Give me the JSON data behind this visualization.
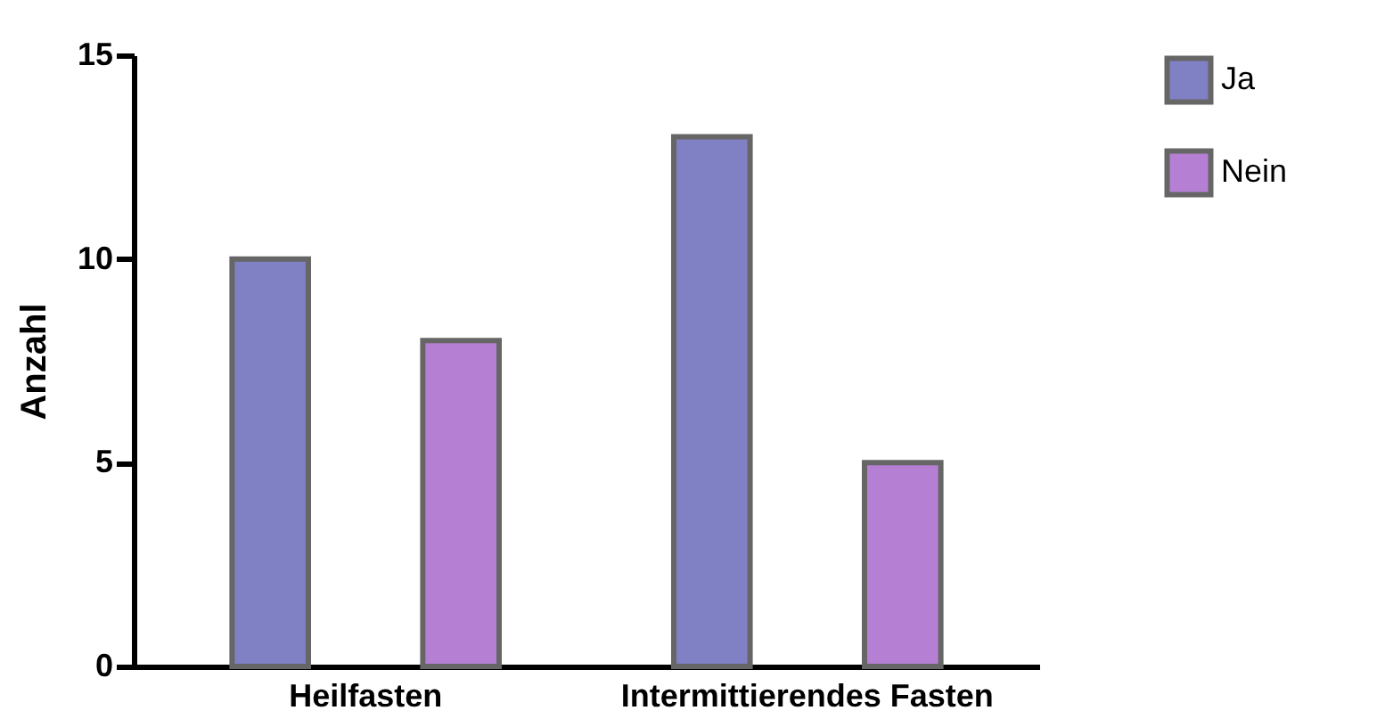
{
  "chart_data": {
    "type": "bar",
    "ylabel": "Anzahl",
    "categories": [
      "Heilfasten",
      "Intermittierendes Fasten"
    ],
    "series": [
      {
        "name": "Ja",
        "color": "#8080c4",
        "values": [
          10,
          13
        ]
      },
      {
        "name": "Nein",
        "color": "#b580d4",
        "values": [
          8,
          5
        ]
      }
    ],
    "ylim": [
      0,
      15
    ],
    "yticks": [
      0,
      5,
      10,
      15
    ],
    "legend": "top right",
    "grid": false
  }
}
